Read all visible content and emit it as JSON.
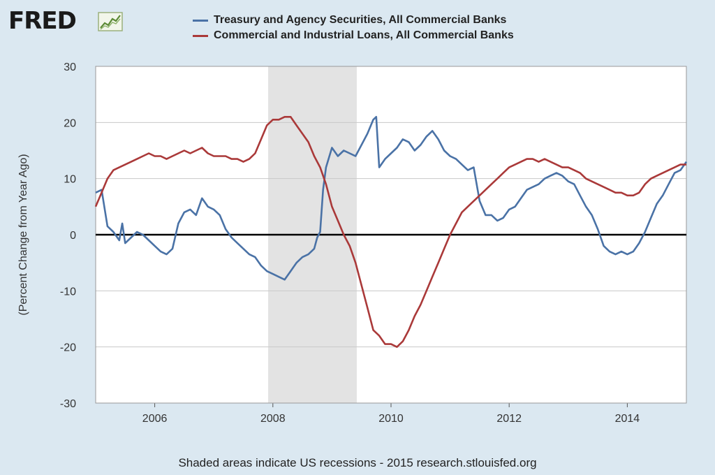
{
  "header": {
    "logo_text": "FRED",
    "logo_icon": "trend-line-icon"
  },
  "legend": {
    "items": [
      {
        "label": "Treasury and Agency Securities, All Commercial Banks",
        "color": "#4a72a6"
      },
      {
        "label": "Commercial and Industrial Loans, All Commercial Banks",
        "color": "#aa3939"
      }
    ]
  },
  "footer": {
    "text": "Shaded areas indicate US recessions - 2015 research.stlouisfed.org"
  },
  "chart_data": {
    "type": "line",
    "ylabel": "(Percent Change from Year Ago)",
    "xlim": [
      2005.0,
      2015.0
    ],
    "ylim": [
      -30,
      30
    ],
    "yticks": [
      -30,
      -20,
      -10,
      0,
      10,
      20,
      30
    ],
    "xticks": [
      2006,
      2008,
      2010,
      2012,
      2014
    ],
    "grid": true,
    "legend_position": "top",
    "recessions": [
      [
        2007.92,
        2009.42
      ]
    ],
    "zero_line": true,
    "series": [
      {
        "name": "Treasury and Agency Securities, All Commercial Banks",
        "color": "#4a72a6",
        "x": [
          2005.0,
          2005.1,
          2005.2,
          2005.3,
          2005.4,
          2005.45,
          2005.5,
          2005.6,
          2005.7,
          2005.8,
          2005.9,
          2006.0,
          2006.1,
          2006.2,
          2006.3,
          2006.4,
          2006.5,
          2006.6,
          2006.7,
          2006.8,
          2006.9,
          2007.0,
          2007.1,
          2007.2,
          2007.3,
          2007.4,
          2007.5,
          2007.6,
          2007.7,
          2007.8,
          2007.9,
          2008.0,
          2008.1,
          2008.2,
          2008.3,
          2008.4,
          2008.5,
          2008.6,
          2008.7,
          2008.75,
          2008.8,
          2008.85,
          2008.9,
          2009.0,
          2009.1,
          2009.2,
          2009.3,
          2009.4,
          2009.5,
          2009.6,
          2009.7,
          2009.75,
          2009.8,
          2009.9,
          2010.0,
          2010.1,
          2010.2,
          2010.3,
          2010.4,
          2010.5,
          2010.6,
          2010.7,
          2010.8,
          2010.9,
          2011.0,
          2011.1,
          2011.2,
          2011.3,
          2011.4,
          2011.5,
          2011.6,
          2011.7,
          2011.8,
          2011.9,
          2012.0,
          2012.1,
          2012.2,
          2012.3,
          2012.4,
          2012.5,
          2012.6,
          2012.7,
          2012.8,
          2012.9,
          2013.0,
          2013.1,
          2013.2,
          2013.3,
          2013.4,
          2013.5,
          2013.6,
          2013.7,
          2013.8,
          2013.9,
          2014.0,
          2014.1,
          2014.2,
          2014.3,
          2014.4,
          2014.5,
          2014.6,
          2014.7,
          2014.8,
          2014.9,
          2015.0
        ],
        "values": [
          7.5,
          8.0,
          1.5,
          0.5,
          -1.0,
          2.0,
          -1.5,
          -0.5,
          0.5,
          0.0,
          -1.0,
          -2.0,
          -3.0,
          -3.5,
          -2.5,
          2.0,
          4.0,
          4.5,
          3.5,
          6.5,
          5.0,
          4.5,
          3.5,
          1.0,
          -0.5,
          -1.5,
          -2.5,
          -3.5,
          -4.0,
          -5.5,
          -6.5,
          -7.0,
          -7.5,
          -8.0,
          -6.5,
          -5.0,
          -4.0,
          -3.5,
          -2.5,
          -0.5,
          0.5,
          8.0,
          12.0,
          15.5,
          14.0,
          15.0,
          14.5,
          14.0,
          16.0,
          18.0,
          20.5,
          21.0,
          12.0,
          13.5,
          14.5,
          15.5,
          17.0,
          16.5,
          15.0,
          16.0,
          17.5,
          18.5,
          17.0,
          15.0,
          14.0,
          13.5,
          12.5,
          11.5,
          12.0,
          6.0,
          3.5,
          3.5,
          2.5,
          3.0,
          4.5,
          5.0,
          6.5,
          8.0,
          8.5,
          9.0,
          10.0,
          10.5,
          11.0,
          10.5,
          9.5,
          9.0,
          7.0,
          5.0,
          3.5,
          1.0,
          -2.0,
          -3.0,
          -3.5,
          -3.0,
          -3.5,
          -3.0,
          -1.5,
          0.5,
          3.0,
          5.5,
          7.0,
          9.0,
          11.0,
          11.5,
          13.0
        ]
      },
      {
        "name": "Commercial and Industrial Loans, All Commercial Banks",
        "color": "#aa3939",
        "x": [
          2005.0,
          2005.1,
          2005.2,
          2005.3,
          2005.4,
          2005.5,
          2005.6,
          2005.7,
          2005.8,
          2005.9,
          2006.0,
          2006.1,
          2006.2,
          2006.3,
          2006.4,
          2006.5,
          2006.6,
          2006.7,
          2006.8,
          2006.9,
          2007.0,
          2007.1,
          2007.2,
          2007.3,
          2007.4,
          2007.5,
          2007.6,
          2007.7,
          2007.8,
          2007.9,
          2008.0,
          2008.1,
          2008.2,
          2008.3,
          2008.4,
          2008.5,
          2008.6,
          2008.7,
          2008.8,
          2008.9,
          2009.0,
          2009.1,
          2009.2,
          2009.3,
          2009.4,
          2009.5,
          2009.6,
          2009.7,
          2009.8,
          2009.9,
          2010.0,
          2010.1,
          2010.2,
          2010.3,
          2010.4,
          2010.5,
          2010.6,
          2010.7,
          2010.8,
          2010.9,
          2011.0,
          2011.1,
          2011.2,
          2011.3,
          2011.4,
          2011.5,
          2011.6,
          2011.7,
          2011.8,
          2011.9,
          2012.0,
          2012.1,
          2012.2,
          2012.3,
          2012.4,
          2012.5,
          2012.6,
          2012.7,
          2012.8,
          2012.9,
          2013.0,
          2013.1,
          2013.2,
          2013.3,
          2013.4,
          2013.5,
          2013.6,
          2013.7,
          2013.8,
          2013.9,
          2014.0,
          2014.1,
          2014.2,
          2014.3,
          2014.4,
          2014.5,
          2014.6,
          2014.7,
          2014.8,
          2014.9,
          2015.0
        ],
        "values": [
          5.0,
          7.5,
          10.0,
          11.5,
          12.0,
          12.5,
          13.0,
          13.5,
          14.0,
          14.5,
          14.0,
          14.0,
          13.5,
          14.0,
          14.5,
          15.0,
          14.5,
          15.0,
          15.5,
          14.5,
          14.0,
          14.0,
          14.0,
          13.5,
          13.5,
          13.0,
          13.5,
          14.5,
          17.0,
          19.5,
          20.5,
          20.5,
          21.0,
          21.0,
          19.5,
          18.0,
          16.5,
          14.0,
          12.0,
          9.0,
          5.0,
          2.5,
          0.0,
          -2.0,
          -5.0,
          -9.0,
          -13.0,
          -17.0,
          -18.0,
          -19.5,
          -19.5,
          -20.0,
          -19.0,
          -17.0,
          -14.5,
          -12.5,
          -10.0,
          -7.5,
          -5.0,
          -2.5,
          0.0,
          2.0,
          4.0,
          5.0,
          6.0,
          7.0,
          8.0,
          9.0,
          10.0,
          11.0,
          12.0,
          12.5,
          13.0,
          13.5,
          13.5,
          13.0,
          13.5,
          13.0,
          12.5,
          12.0,
          12.0,
          11.5,
          11.0,
          10.0,
          9.5,
          9.0,
          8.5,
          8.0,
          7.5,
          7.5,
          7.0,
          7.0,
          7.5,
          9.0,
          10.0,
          10.5,
          11.0,
          11.5,
          12.0,
          12.5,
          12.5
        ]
      }
    ]
  }
}
